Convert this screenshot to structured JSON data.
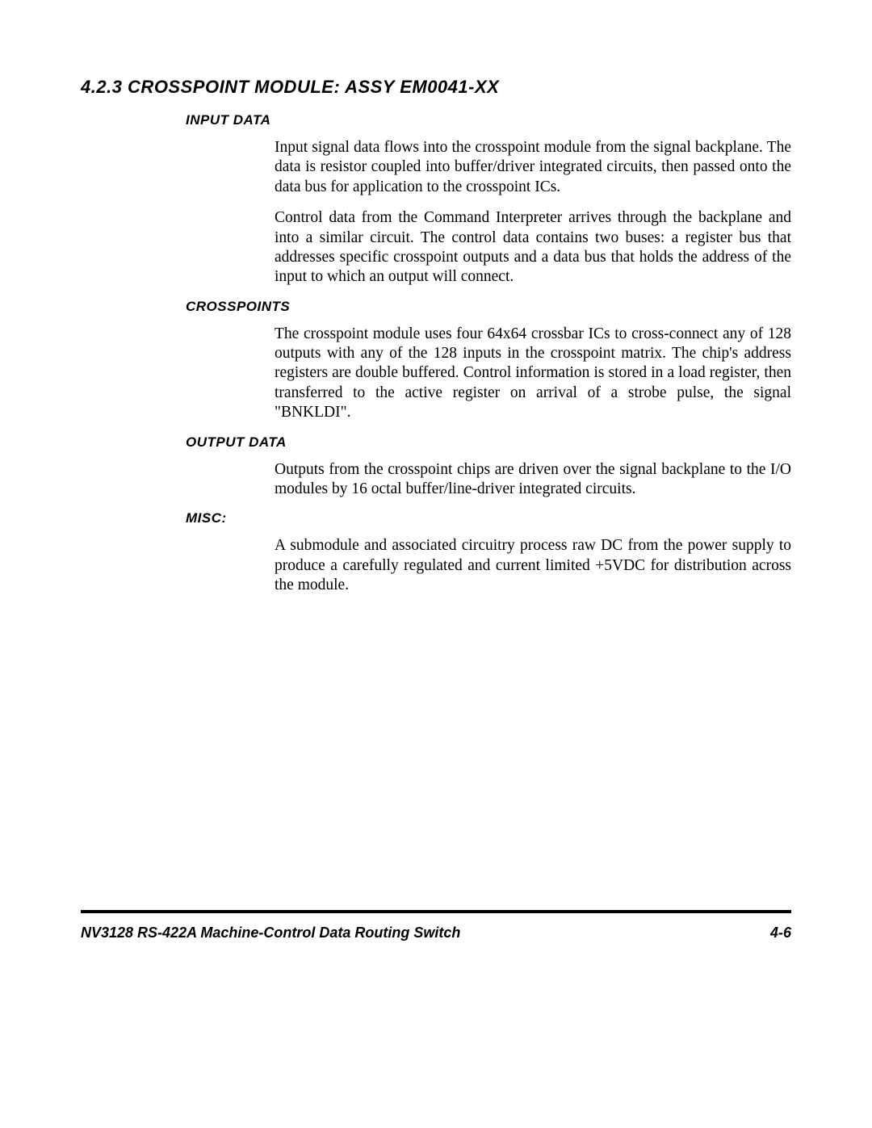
{
  "heading": "4.2.3 CROSSPOINT MODULE:  ASSY  EM0041-XX",
  "sections": {
    "input_data": {
      "title": "INPUT  DATA",
      "p1": "Input signal data flows into the crosspoint module from the signal backplane. The data is resistor coupled into buffer/driver integrated circuits, then passed onto the data bus for application to the crosspoint ICs.",
      "p2": "Control  data from the Command Interpreter arrives through the backplane and into a similar circuit. The control data contains two buses: a register bus that addresses specific crosspoint outputs and a data bus that holds the address of the input to which an output will connect."
    },
    "crosspoints": {
      "title": "CROSSPOINTS",
      "p1": "The crosspoint module uses four  64x64 crossbar ICs to  cross-connect any of 128 outputs with any of the 128 inputs in the crosspoint matrix.  The chip's address registers are double buffered.  Control information is stored in a load register, then transferred to the active register on arrival of a strobe pulse, the signal \"BNKLDI\"."
    },
    "output_data": {
      "title": "OUTPUT  DATA",
      "p1": "Outputs from the crosspoint chips are driven over the signal backplane to the I/O modules by 16 octal buffer/line-driver integrated circuits."
    },
    "misc": {
      "title": "MISC:",
      "p1": "A submodule and associated circuitry process raw DC from the power supply to produce a carefully regulated and current limited +5VDC for distribution across the module."
    }
  },
  "footer": {
    "left": "NV3128 RS-422A Machine-Control Data Routing Switch",
    "right": "4-6"
  }
}
